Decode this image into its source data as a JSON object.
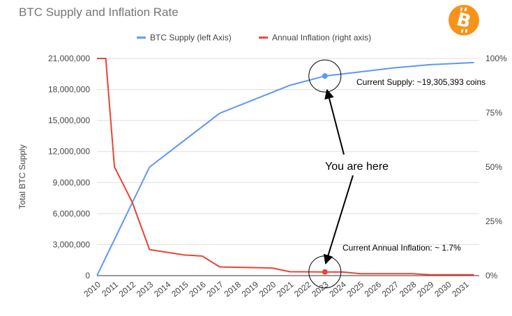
{
  "chart_data": {
    "type": "line",
    "title": "BTC Supply and Inflation Rate",
    "x": [
      "2010",
      "2011",
      "2012",
      "2013",
      "2014",
      "2015",
      "2016",
      "2017",
      "2018",
      "2019",
      "2020",
      "2021",
      "2022",
      "2023",
      "2024",
      "2025",
      "2026",
      "2027",
      "2028",
      "2029",
      "2030",
      "2031"
    ],
    "ylabel": "Total BTC Supply",
    "ylim": [
      0,
      21000000
    ],
    "y2lim": [
      0,
      100
    ],
    "y_ticks": [
      "0",
      "3,000,000",
      "6,000,000",
      "9,000,000",
      "12,000,000",
      "15,000,000",
      "18,000,000",
      "21,000,000"
    ],
    "y2_ticks": [
      "0%",
      "25%",
      "50%",
      "75%",
      "100%"
    ],
    "legend_position": "top",
    "grid": true,
    "series": [
      {
        "name": "BTC Supply (left Axis)",
        "axis": "left",
        "color": "#5e97f6",
        "x": [
          2010,
          2013,
          2017,
          2021,
          2023,
          2025,
          2027,
          2029,
          2031.5
        ],
        "values": [
          0,
          10500000,
          15700000,
          18400000,
          19305393,
          19700000,
          20100000,
          20400000,
          20600000
        ]
      },
      {
        "name": "Annual Inflation (right axis)",
        "axis": "right",
        "color": "#ea4335",
        "x": [
          2010,
          2010.5,
          2011,
          2012,
          2013,
          2015,
          2016,
          2017,
          2020,
          2021,
          2023,
          2024,
          2025,
          2028,
          2029,
          2031.5
        ],
        "values": [
          100,
          100,
          50,
          34,
          12,
          9.5,
          9,
          4,
          3.5,
          1.8,
          1.7,
          1.7,
          0.9,
          0.9,
          0.4,
          0.4
        ]
      }
    ],
    "annotations": [
      {
        "text": "Current Supply: ~19,305,393 coins"
      },
      {
        "text": "You are here"
      },
      {
        "text": "Current Annual Inflation: ~ 1.7%"
      }
    ]
  }
}
